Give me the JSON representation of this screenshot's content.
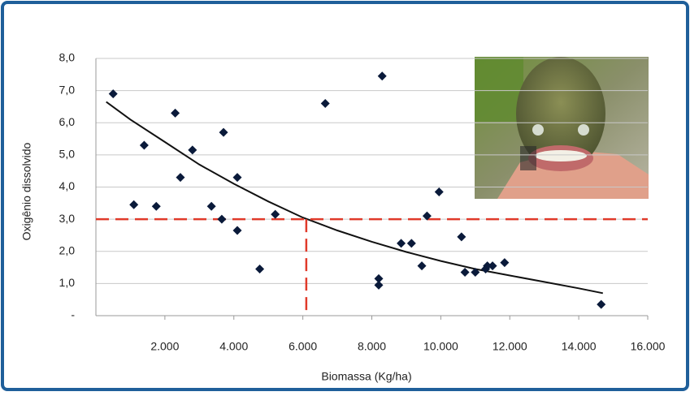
{
  "chart_data": {
    "type": "scatter",
    "x_label": "Biomassa (Kg/ha)",
    "y_label": "Oxigênio dissolvido",
    "color": "#0a1a3a",
    "x": [
      500,
      1100,
      1400,
      1750,
      2300,
      2450,
      2800,
      3350,
      3650,
      3700,
      4100,
      4100,
      4750,
      5200,
      6650,
      8300,
      8200,
      8200,
      8850,
      9150,
      9450,
      9600,
      9950,
      10600,
      10700,
      11000,
      11300,
      11350,
      11500,
      11850,
      14650
    ],
    "values": [
      6.9,
      3.45,
      5.3,
      3.4,
      6.3,
      4.3,
      5.15,
      3.4,
      3.0,
      5.7,
      4.3,
      2.65,
      1.45,
      3.15,
      6.6,
      7.45,
      1.15,
      0.95,
      2.25,
      2.25,
      1.55,
      3.1,
      3.85,
      2.45,
      1.35,
      1.35,
      1.45,
      1.55,
      1.55,
      1.65,
      0.35
    ],
    "trend": {
      "color": "#111111",
      "x": [
        300,
        1000,
        2000,
        3000,
        4000,
        5000,
        6000,
        7000,
        8000,
        9000,
        10000,
        11000,
        12000,
        13000,
        14000,
        14700
      ],
      "y": [
        6.65,
        6.1,
        5.4,
        4.7,
        4.1,
        3.55,
        3.05,
        2.65,
        2.3,
        1.98,
        1.7,
        1.45,
        1.25,
        1.05,
        0.85,
        0.7
      ]
    },
    "reference": {
      "color": "#e03a2a",
      "x": 6100,
      "y": 3.0
    },
    "xlim": [
      0,
      16000
    ],
    "xticks": [
      {
        "value": 2000,
        "label": "2.000"
      },
      {
        "value": 4000,
        "label": "4.000"
      },
      {
        "value": 6000,
        "label": "6.000"
      },
      {
        "value": 8000,
        "label": "8.000"
      },
      {
        "value": 10000,
        "label": "10.000"
      },
      {
        "value": 12000,
        "label": "12.000"
      },
      {
        "value": 14000,
        "label": "14.000"
      },
      {
        "value": 16000,
        "label": "16.000"
      }
    ],
    "ylim": [
      0,
      8
    ],
    "yticks": [
      {
        "value": 0,
        "label": "-"
      },
      {
        "value": 1,
        "label": "1,0"
      },
      {
        "value": 2,
        "label": "2,0"
      },
      {
        "value": 3,
        "label": "3,0"
      },
      {
        "value": 4,
        "label": "4,0"
      },
      {
        "value": 5,
        "label": "5,0"
      },
      {
        "value": 6,
        "label": "6,0"
      },
      {
        "value": 7,
        "label": "7,0"
      },
      {
        "value": 8,
        "label": "8,0"
      }
    ],
    "grid": true
  }
}
